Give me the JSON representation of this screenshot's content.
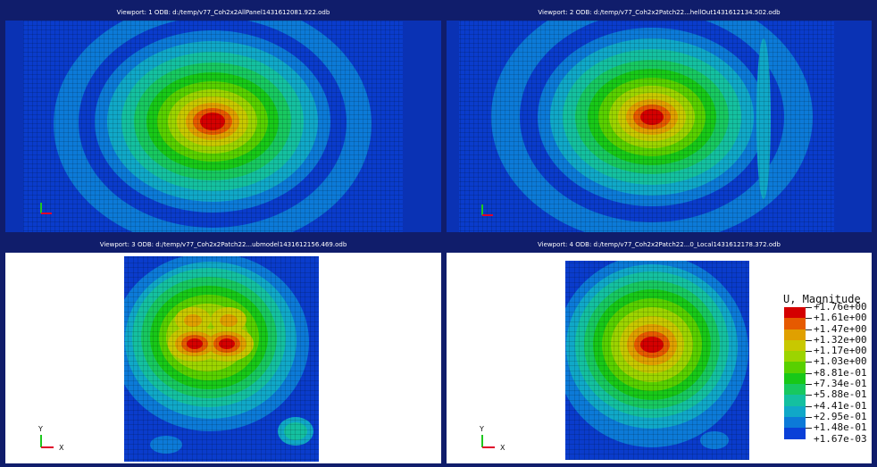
{
  "viewports": [
    {
      "title": "Viewport: 1    ODB: d:/temp/v77_Coh2x2AllPanel1431612081.922.odb"
    },
    {
      "title": "Viewport: 2    ODB: d:/temp/v77_Coh2x2Patch22...hellOut1431612134.502.odb"
    },
    {
      "title": "Viewport: 3    ODB: d:/temp/v77_Coh2x2Patch22...ubmodel1431612156.469.odb"
    },
    {
      "title": "Viewport: 4    ODB: d:/temp/v77_Coh2x2Patch22...0_Local1431612178.372.odb"
    }
  ],
  "triad": {
    "x_label": "X",
    "y_label": "Y"
  },
  "legend": {
    "title": "U, Magnitude",
    "labels": [
      "+1.76e+00",
      "+1.61e+00",
      "+1.47e+00",
      "+1.32e+00",
      "+1.17e+00",
      "+1.03e+00",
      "+8.81e-01",
      "+7.34e-01",
      "+5.88e-01",
      "+4.41e-01",
      "+2.95e-01",
      "+1.48e-01",
      "+1.67e-03"
    ],
    "colors": [
      "#d40000",
      "#e65a00",
      "#e0a000",
      "#c8c800",
      "#9cd400",
      "#58d000",
      "#18c818",
      "#18c860",
      "#14c0a0",
      "#10a8c8",
      "#0c7ad8",
      "#0a40d8",
      "#0a14c8"
    ]
  }
}
